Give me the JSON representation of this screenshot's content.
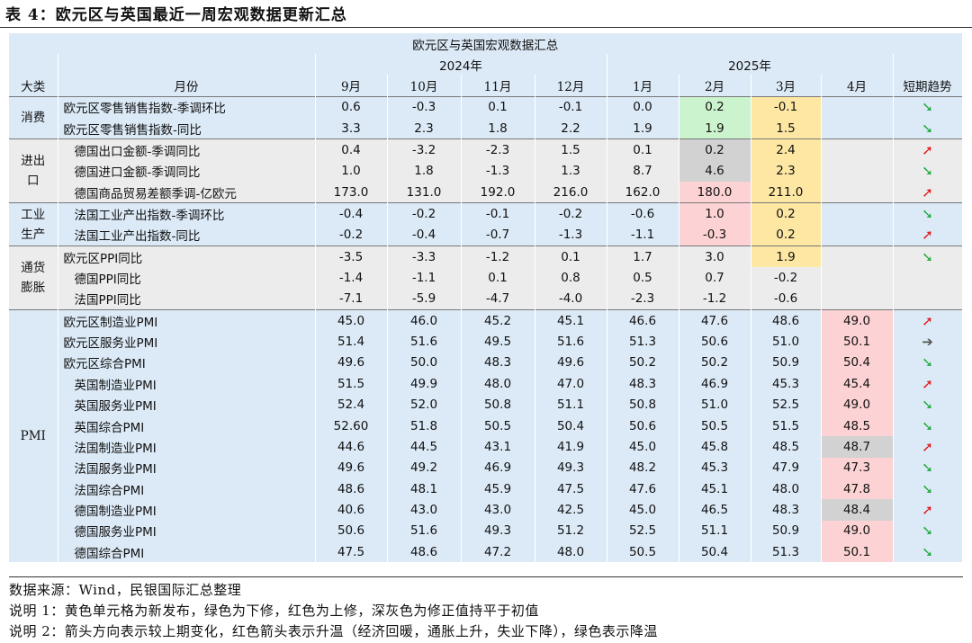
{
  "title": "表 4：欧元区与英国最近一周宏观数据更新汇总",
  "table_title": "欧元区与英国宏观数据汇总",
  "year_headers": [
    "2024年",
    "2025年"
  ],
  "col_headers": {
    "category": "大类",
    "indicator": "月份",
    "months": [
      "9月",
      "10月",
      "11月",
      "12月",
      "1月",
      "2月",
      "3月",
      "4月"
    ],
    "trend": "短期趋势"
  },
  "categories": {
    "consumption": "消费",
    "trade_a": "进出",
    "trade_b": "口",
    "industry_a": "工业",
    "industry_b": "生产",
    "inflation_a": "通货",
    "inflation_b": "膨胀",
    "pmi": "PMI"
  },
  "rows": [
    {
      "label": "欧元区零售销售指数-季调环比",
      "values": [
        "0.6",
        "-0.3",
        "0.1",
        "-0.1",
        "0.0",
        "0.2",
        "-0.1",
        ""
      ],
      "trend": "down"
    },
    {
      "label": "欧元区零售销售指数-同比",
      "values": [
        "3.3",
        "2.3",
        "1.8",
        "2.2",
        "1.9",
        "1.9",
        "1.5",
        ""
      ],
      "trend": "down"
    },
    {
      "label": "德国出口金额-季调同比",
      "values": [
        "0.4",
        "-3.2",
        "-2.3",
        "1.5",
        "0.1",
        "0.2",
        "2.4",
        ""
      ],
      "trend": "up"
    },
    {
      "label": "德国进口金额-季调同比",
      "values": [
        "1.0",
        "1.8",
        "-1.3",
        "1.3",
        "8.7",
        "4.6",
        "2.3",
        ""
      ],
      "trend": "down"
    },
    {
      "label": "德国商品贸易差额季调-亿欧元",
      "values": [
        "173.0",
        "131.0",
        "192.0",
        "216.0",
        "162.0",
        "180.0",
        "211.0",
        ""
      ],
      "trend": "up"
    },
    {
      "label": "法国工业产出指数-季调环比",
      "values": [
        "-0.4",
        "-0.2",
        "-0.1",
        "-0.2",
        "-0.6",
        "1.0",
        "0.2",
        ""
      ],
      "trend": "down"
    },
    {
      "label": "法国工业产出指数-同比",
      "values": [
        "-0.2",
        "-0.4",
        "-0.7",
        "-1.3",
        "-1.1",
        "-0.3",
        "0.2",
        ""
      ],
      "trend": "up"
    },
    {
      "label": "欧元区PPI同比",
      "values": [
        "-3.5",
        "-3.3",
        "-1.2",
        "0.1",
        "1.7",
        "3.0",
        "1.9",
        ""
      ],
      "trend": "down"
    },
    {
      "label": "德国PPI同比",
      "values": [
        "-1.4",
        "-1.1",
        "0.1",
        "0.8",
        "0.5",
        "0.7",
        "-0.2",
        ""
      ],
      "trend": ""
    },
    {
      "label": "法国PPI同比",
      "values": [
        "-7.1",
        "-5.9",
        "-4.7",
        "-4.0",
        "-2.3",
        "-1.2",
        "-0.6",
        ""
      ],
      "trend": ""
    },
    {
      "label": "欧元区制造业PMI",
      "values": [
        "45.0",
        "46.0",
        "45.2",
        "45.1",
        "46.6",
        "47.6",
        "48.6",
        "49.0"
      ],
      "trend": "up"
    },
    {
      "label": "欧元区服务业PMI",
      "values": [
        "51.4",
        "51.6",
        "49.5",
        "51.6",
        "51.3",
        "50.6",
        "51.0",
        "50.1"
      ],
      "trend": "flat"
    },
    {
      "label": "欧元区综合PMI",
      "values": [
        "49.6",
        "50.0",
        "48.3",
        "49.6",
        "50.2",
        "50.2",
        "50.9",
        "50.4"
      ],
      "trend": "down"
    },
    {
      "label": "英国制造业PMI",
      "values": [
        "51.5",
        "49.9",
        "48.0",
        "47.0",
        "48.3",
        "46.9",
        "45.3",
        "45.4"
      ],
      "trend": "up"
    },
    {
      "label": "英国服务业PMI",
      "values": [
        "52.4",
        "52.0",
        "50.8",
        "51.1",
        "50.8",
        "51.0",
        "52.5",
        "49.0"
      ],
      "trend": "down"
    },
    {
      "label": "英国综合PMI",
      "values": [
        "52.60",
        "51.8",
        "50.5",
        "50.4",
        "50.6",
        "50.5",
        "51.5",
        "48.5"
      ],
      "trend": "down"
    },
    {
      "label": "法国制造业PMI",
      "values": [
        "44.6",
        "44.5",
        "43.1",
        "41.9",
        "45.0",
        "45.8",
        "48.5",
        "48.7"
      ],
      "trend": "up"
    },
    {
      "label": "法国服务业PMI",
      "values": [
        "49.6",
        "49.2",
        "46.9",
        "49.3",
        "48.2",
        "45.3",
        "47.9",
        "47.3"
      ],
      "trend": "down"
    },
    {
      "label": "法国综合PMI",
      "values": [
        "48.6",
        "48.1",
        "45.9",
        "47.5",
        "47.6",
        "45.1",
        "48.0",
        "47.8"
      ],
      "trend": "down"
    },
    {
      "label": "德国制造业PMI",
      "values": [
        "40.6",
        "43.0",
        "43.0",
        "42.5",
        "45.0",
        "46.5",
        "48.3",
        "48.4"
      ],
      "trend": "up"
    },
    {
      "label": "德国服务业PMI",
      "values": [
        "50.6",
        "51.6",
        "49.3",
        "51.2",
        "52.5",
        "51.1",
        "50.9",
        "49.0"
      ],
      "trend": "down"
    },
    {
      "label": "德国综合PMI",
      "values": [
        "47.5",
        "48.6",
        "47.2",
        "48.0",
        "50.5",
        "50.4",
        "51.3",
        "50.1"
      ],
      "trend": "down"
    }
  ],
  "highlights": [
    {
      "row": 0,
      "col": 5,
      "color": "green"
    },
    {
      "row": 0,
      "col": 6,
      "color": "yellow"
    },
    {
      "row": 1,
      "col": 5,
      "color": "green"
    },
    {
      "row": 1,
      "col": 6,
      "color": "yellow"
    },
    {
      "row": 2,
      "col": 5,
      "color": "grey"
    },
    {
      "row": 2,
      "col": 6,
      "color": "yellow"
    },
    {
      "row": 3,
      "col": 5,
      "color": "grey"
    },
    {
      "row": 3,
      "col": 6,
      "color": "yellow"
    },
    {
      "row": 4,
      "col": 5,
      "color": "red"
    },
    {
      "row": 4,
      "col": 6,
      "color": "yellow"
    },
    {
      "row": 5,
      "col": 5,
      "color": "red"
    },
    {
      "row": 5,
      "col": 6,
      "color": "yellow"
    },
    {
      "row": 6,
      "col": 5,
      "color": "red"
    },
    {
      "row": 6,
      "col": 6,
      "color": "yellow"
    },
    {
      "row": 7,
      "col": 6,
      "color": "yellow"
    },
    {
      "row": 10,
      "col": 7,
      "color": "red"
    },
    {
      "row": 11,
      "col": 7,
      "color": "red"
    },
    {
      "row": 12,
      "col": 7,
      "color": "red"
    },
    {
      "row": 13,
      "col": 7,
      "color": "red"
    },
    {
      "row": 14,
      "col": 7,
      "color": "red"
    },
    {
      "row": 15,
      "col": 7,
      "color": "red"
    },
    {
      "row": 16,
      "col": 7,
      "color": "grey"
    },
    {
      "row": 17,
      "col": 7,
      "color": "red"
    },
    {
      "row": 18,
      "col": 7,
      "color": "red"
    },
    {
      "row": 19,
      "col": 7,
      "color": "grey"
    },
    {
      "row": 20,
      "col": 7,
      "color": "red"
    },
    {
      "row": 21,
      "col": 7,
      "color": "red"
    }
  ],
  "colors": {
    "header_blue": "#dceaf7",
    "yellow": "#fde7a3",
    "green": "#cbf3cd",
    "red": "#fcd2d4",
    "grey": "#d2d2d2",
    "arrow_up": "#e0191b",
    "arrow_down": "#1ea93a",
    "arrow_flat": "#555555"
  },
  "arrow_glyphs": {
    "up": "➚",
    "down": "➘",
    "flat": "➔"
  },
  "notes": [
    "数据来源：Wind，民银国际汇总整理",
    "说明 1：黄色单元格为新发布，绿色为下修，红色为上修，深灰色为修正值持平于初值",
    "说明 2：箭头方向表示较上期变化，红色箭头表示升温（经济回暖，通胀上升，失业下降），绿色表示降温"
  ]
}
